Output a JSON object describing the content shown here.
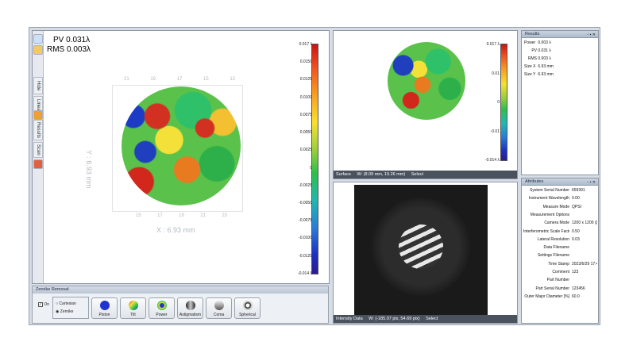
{
  "surface_main": {
    "pv": "PV 0.031λ",
    "rms": "RMS 0.003λ",
    "y_axis_label": "Y : 6.93 mm",
    "x_axis_label": "X : 6.93 mm",
    "top_ticks": [
      "21",
      "19",
      "17",
      "15",
      "13"
    ],
    "bottom_ticks": [
      "15",
      "17",
      "19",
      "21",
      "23"
    ],
    "colorbar_ticks": [
      "0.017 λ",
      "0.0150",
      "0.0125",
      "0.0100",
      "0.0075",
      "0.0050",
      "0.0025",
      "0",
      "-0.0025",
      "-0.0050",
      "-0.0075",
      "-0.0100",
      "-0.0125",
      "-0.014 λ"
    ]
  },
  "left_toolstrip": {
    "tabs": [
      "Hide",
      "Linear",
      "Results",
      "Scan"
    ]
  },
  "surface_small": {
    "colorbar_ticks": [
      "0.017 λ",
      "0.01",
      "0",
      "-0.01",
      "-0.014 λ"
    ],
    "status": [
      "Surface",
      "W: (8.09 mm, 19.26 mm)",
      "Select"
    ]
  },
  "intensity": {
    "status": [
      "Intensity Data",
      "W: (-185.07 pix, 54.69 pix)",
      "Select"
    ]
  },
  "zernike": {
    "title": "Zernike Removal",
    "on_label": "On",
    "cartesian_label": "Cartesian",
    "zernike_label": "Zernike",
    "buttons": [
      "Piston",
      "Tilt",
      "Power",
      "Astigmatism",
      "Coma",
      "Spherical"
    ]
  },
  "results": {
    "title": "Results",
    "rows": [
      {
        "label": "Power",
        "value": "0.003",
        "unit": "λ"
      },
      {
        "label": "PV",
        "value": "0.031",
        "unit": "λ"
      },
      {
        "label": "RMS",
        "value": "0.003",
        "unit": "λ"
      },
      {
        "label": "Size X",
        "value": "6.93",
        "unit": "mm"
      },
      {
        "label": "Size Y",
        "value": "6.93",
        "unit": "mm"
      }
    ]
  },
  "attributes": {
    "title": "Attributes",
    "rows": [
      {
        "label": "System Serial Number",
        "value": "659391"
      },
      {
        "label": "Instrument Wavelength",
        "value": "0.00"
      },
      {
        "label": "Measure Mode",
        "value": "QPSI"
      },
      {
        "label": "Measurement Options",
        "value": ""
      },
      {
        "label": "Camera Mode",
        "value": "1200 x 1200 @"
      },
      {
        "label": "Interferometric Scale Factor",
        "value": "0.50"
      },
      {
        "label": "Lateral Resolution",
        "value": "0.03"
      },
      {
        "label": "Data Filename",
        "value": ""
      },
      {
        "label": "Settings Filename",
        "value": ""
      },
      {
        "label": "Time Stamp",
        "value": "2023/6/29 17:4"
      },
      {
        "label": "Comment",
        "value": "123"
      },
      {
        "label": "Part Number",
        "value": ""
      },
      {
        "label": "Part Serial Number",
        "value": "123456"
      },
      {
        "label": "Outer Major Diameter [%]",
        "value": "60.0"
      }
    ]
  }
}
